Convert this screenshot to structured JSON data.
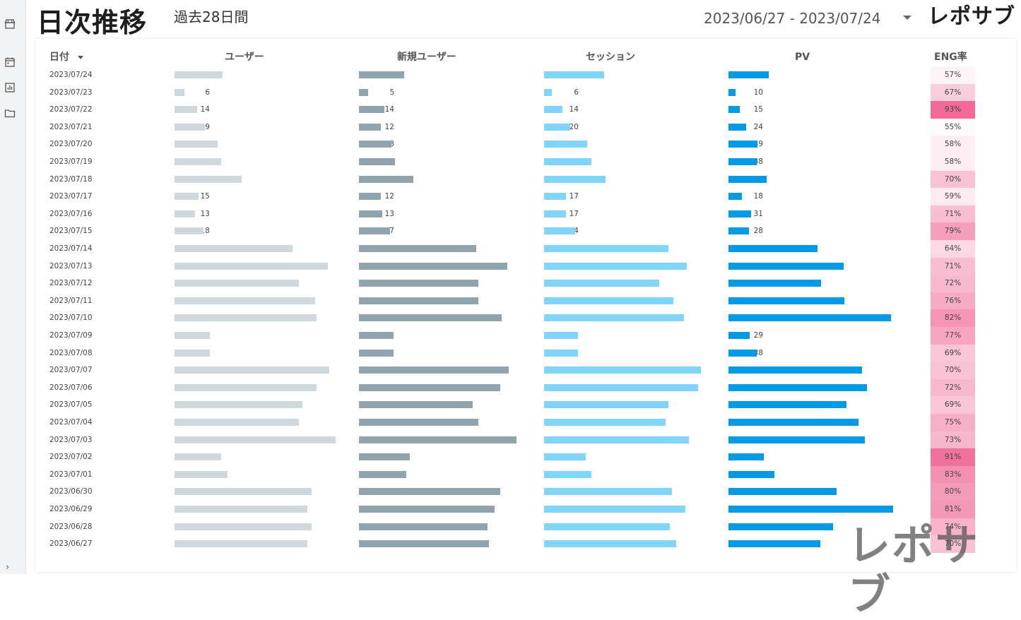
{
  "title": "日次推移",
  "subtitle": "過去28日間",
  "date_range": "2023/06/27 - 2023/07/24",
  "brand": "レポサブ",
  "watermark": "レポサブ",
  "sidebar": {
    "icons": [
      "store-icon",
      "calendar-icon",
      "report-chart-icon",
      "folder-icon"
    ],
    "expand": "›"
  },
  "columns": {
    "date": "日付",
    "users": "ユーザー",
    "new_users": "新規ユーザー",
    "sessions": "セッション",
    "pv": "PV",
    "eng": "ENG率"
  },
  "colors": {
    "users": "#cfd8dc",
    "new_users": "#90a4ae",
    "sessions": "#81d4fa",
    "pv": "#039be5",
    "eng_heat": "#f06292"
  },
  "rows": [
    {
      "date": "2023/07/24",
      "users": "30",
      "new_users": "25",
      "sessions": "46",
      "pv": "55",
      "eng": "57%"
    },
    {
      "date": "2023/07/23",
      "users": "6",
      "new_users": "5",
      "sessions": "6",
      "pv": "10",
      "eng": "67%"
    },
    {
      "date": "2023/07/22",
      "users": "14",
      "new_users": "14",
      "sessions": "14",
      "pv": "15",
      "eng": "93%"
    },
    {
      "date": "2023/07/21",
      "users": "19",
      "new_users": "12",
      "sessions": "20",
      "pv": "24",
      "eng": "55%"
    },
    {
      "date": "2023/07/20",
      "users": "27",
      "new_users": "18",
      "sessions": "33",
      "pv": "39",
      "eng": "58%"
    },
    {
      "date": "2023/07/19",
      "users": "29",
      "new_users": "20",
      "sessions": "36",
      "pv": "38",
      "eng": "58%"
    },
    {
      "date": "2023/07/18",
      "users": "42",
      "new_users": "30",
      "sessions": "47",
      "pv": "52",
      "eng": "70%"
    },
    {
      "date": "2023/07/17",
      "users": "15",
      "new_users": "12",
      "sessions": "17",
      "pv": "18",
      "eng": "59%"
    },
    {
      "date": "2023/07/16",
      "users": "13",
      "new_users": "13",
      "sessions": "17",
      "pv": "31",
      "eng": "71%"
    },
    {
      "date": "2023/07/15",
      "users": "18",
      "new_users": "17",
      "sessions": "24",
      "pv": "28",
      "eng": "79%"
    },
    {
      "date": "2023/07/14",
      "users": "74",
      "new_users": "65",
      "sessions": "95",
      "pv": "121",
      "eng": "64%"
    },
    {
      "date": "2023/07/13",
      "users": "96",
      "new_users": "82",
      "sessions": "109",
      "pv": "156",
      "eng": "71%"
    },
    {
      "date": "2023/07/12",
      "users": "78",
      "new_users": "66",
      "sessions": "88",
      "pv": "125",
      "eng": "72%"
    },
    {
      "date": "2023/07/11",
      "users": "88",
      "new_users": "66",
      "sessions": "99",
      "pv": "157",
      "eng": "76%"
    },
    {
      "date": "2023/07/10",
      "users": "89",
      "new_users": "79",
      "sessions": "107",
      "pv": "220",
      "eng": "82%"
    },
    {
      "date": "2023/07/09",
      "users": "22",
      "new_users": "19",
      "sessions": "26",
      "pv": "29",
      "eng": "77%"
    },
    {
      "date": "2023/07/08",
      "users": "22",
      "new_users": "19",
      "sessions": "26",
      "pv": "38",
      "eng": "69%"
    },
    {
      "date": "2023/07/07",
      "users": "97",
      "new_users": "83",
      "sessions": "120",
      "pv": "181",
      "eng": "70%"
    },
    {
      "date": "2023/07/06",
      "users": "89",
      "new_users": "78",
      "sessions": "118",
      "pv": "188",
      "eng": "72%"
    },
    {
      "date": "2023/07/05",
      "users": "80",
      "new_users": "63",
      "sessions": "95",
      "pv": "160",
      "eng": "69%"
    },
    {
      "date": "2023/07/04",
      "users": "78",
      "new_users": "66",
      "sessions": "93",
      "pv": "176",
      "eng": "75%"
    },
    {
      "date": "2023/07/03",
      "users": "101",
      "new_users": "87",
      "sessions": "111",
      "pv": "185",
      "eng": "73%"
    },
    {
      "date": "2023/07/02",
      "users": "29",
      "new_users": "28",
      "sessions": "32",
      "pv": "48",
      "eng": "91%"
    },
    {
      "date": "2023/07/01",
      "users": "33",
      "new_users": "26",
      "sessions": "36",
      "pv": "62",
      "eng": "83%"
    },
    {
      "date": "2023/06/30",
      "users": "86",
      "new_users": "78",
      "sessions": "98",
      "pv": "146",
      "eng": "80%"
    },
    {
      "date": "2023/06/29",
      "users": "83",
      "new_users": "75",
      "sessions": "108",
      "pv": "223",
      "eng": "81%"
    },
    {
      "date": "2023/06/28",
      "users": "86",
      "new_users": "71",
      "sessions": "96",
      "pv": "142",
      "eng": "74%"
    },
    {
      "date": "2023/06/27",
      "users": "83",
      "new_users": "72",
      "sessions": "101",
      "pv": "124",
      "eng": "70%"
    }
  ]
}
